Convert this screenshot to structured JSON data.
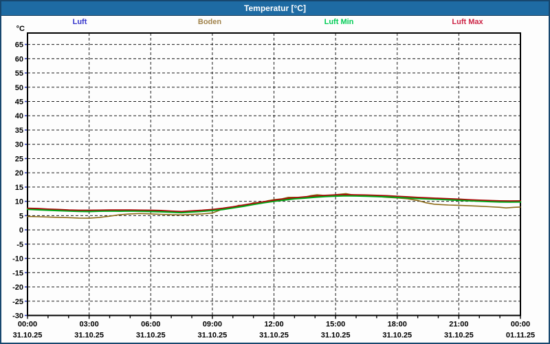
{
  "window": {
    "title": "Temperatur [°C]"
  },
  "legend": {
    "items": [
      {
        "label": "Luft",
        "color": "#3333cc"
      },
      {
        "label": "Boden",
        "color": "#a0824a"
      },
      {
        "label": "Luft Min",
        "color": "#00cc55"
      },
      {
        "label": "Luft Max",
        "color": "#cc2244"
      }
    ]
  },
  "chart_data": {
    "type": "line",
    "title": "Temperatur [°C]",
    "ylabel": "°C",
    "ylim": [
      -30,
      69
    ],
    "grid": "dashed",
    "legend_position": "top",
    "y_ticks": [
      65,
      60,
      55,
      50,
      45,
      40,
      35,
      30,
      25,
      20,
      15,
      10,
      5,
      0,
      -5,
      -10,
      -15,
      -20,
      -25,
      -30
    ],
    "x_ticks": [
      {
        "hour": 0,
        "time": "00:00",
        "date": "31.10.25"
      },
      {
        "hour": 3,
        "time": "03:00",
        "date": "31.10.25"
      },
      {
        "hour": 6,
        "time": "06:00",
        "date": "31.10.25"
      },
      {
        "hour": 9,
        "time": "09:00",
        "date": "31.10.25"
      },
      {
        "hour": 12,
        "time": "12:00",
        "date": "31.10.25"
      },
      {
        "hour": 15,
        "time": "15:00",
        "date": "31.10.25"
      },
      {
        "hour": 18,
        "time": "18:00",
        "date": "31.10.25"
      },
      {
        "hour": 21,
        "time": "21:00",
        "date": "31.10.25"
      },
      {
        "hour": 24,
        "time": "00:00",
        "date": "01.11.25"
      }
    ],
    "series": [
      {
        "name": "Luft",
        "color": "#3333cc",
        "width": 1.4,
        "x": [
          0,
          0.5,
          1,
          1.5,
          2,
          2.5,
          3,
          3.5,
          4,
          4.5,
          5,
          5.5,
          6,
          6.5,
          7,
          7.5,
          8,
          8.5,
          9,
          9.5,
          10,
          10.5,
          11,
          11.5,
          12,
          12.5,
          13,
          13.5,
          14,
          14.5,
          15,
          15.5,
          16,
          16.5,
          17,
          17.5,
          18,
          18.5,
          19,
          19.5,
          20,
          20.5,
          21,
          21.5,
          22,
          22.5,
          23,
          23.5,
          24
        ],
        "values": [
          7.45,
          7.35,
          7.15,
          7.05,
          6.85,
          6.75,
          6.75,
          6.8,
          6.85,
          6.85,
          6.85,
          6.8,
          6.75,
          6.65,
          6.45,
          6.3,
          6.55,
          6.75,
          7.05,
          7.45,
          7.95,
          8.55,
          9.15,
          9.75,
          10.25,
          10.75,
          11.15,
          11.45,
          11.75,
          11.95,
          12.15,
          12.2,
          12.15,
          12.1,
          11.95,
          11.85,
          11.65,
          11.45,
          11.25,
          11.1,
          10.95,
          10.8,
          10.65,
          10.45,
          10.3,
          10.15,
          10.05,
          10.0,
          10.05
        ]
      },
      {
        "name": "Boden",
        "color": "#8b6914",
        "width": 1.6,
        "x": [
          0,
          0.5,
          1,
          1.5,
          2,
          2.5,
          3,
          3.5,
          4,
          4.5,
          5,
          5.5,
          6,
          6.5,
          7,
          7.5,
          8,
          8.5,
          9,
          9.4,
          9.7,
          10,
          10.3,
          10.6,
          11,
          11.3,
          11.7,
          12,
          12.4,
          12.7,
          13,
          13.4,
          13.8,
          14.1,
          14.4,
          14.8,
          15.1,
          15.5,
          15.8,
          16,
          16.5,
          17,
          17.5,
          18,
          18.5,
          19,
          19.4,
          19.8,
          20,
          20.5,
          21,
          21.5,
          22,
          22.5,
          23,
          23.3,
          23.7,
          24
        ],
        "values": [
          4.7,
          4.6,
          4.5,
          4.4,
          4.3,
          4.15,
          4.1,
          4.35,
          4.8,
          5.3,
          5.6,
          5.75,
          5.6,
          5.45,
          5.3,
          5.25,
          5.4,
          5.6,
          5.9,
          7.0,
          7.8,
          7.9,
          8.6,
          8.4,
          9.5,
          9.4,
          10.2,
          10.6,
          10.9,
          11.4,
          11.4,
          11.3,
          12.0,
          12.3,
          12.1,
          12.0,
          12.4,
          12.7,
          12.3,
          12.2,
          12.0,
          11.7,
          11.4,
          11.2,
          10.9,
          10.3,
          9.5,
          9.0,
          8.9,
          8.7,
          8.6,
          8.45,
          8.3,
          8.1,
          7.9,
          7.7,
          7.9,
          8.0
        ]
      },
      {
        "name": "Luft Min",
        "color": "#00a818",
        "width": 2.6,
        "x": [
          0,
          0.5,
          1,
          1.5,
          2,
          2.5,
          3,
          3.5,
          4,
          4.5,
          5,
          5.5,
          6,
          6.5,
          7,
          7.5,
          8,
          8.5,
          9,
          9.5,
          10,
          10.5,
          11,
          11.5,
          12,
          12.5,
          13,
          13.5,
          14,
          14.5,
          15,
          15.5,
          16,
          16.5,
          17,
          17.5,
          18,
          18.5,
          19,
          19.5,
          20,
          20.5,
          21,
          21.5,
          22,
          22.5,
          23,
          23.5,
          24
        ],
        "values": [
          7.25,
          7.1,
          6.95,
          6.8,
          6.65,
          6.55,
          6.5,
          6.6,
          6.65,
          6.6,
          6.65,
          6.6,
          6.5,
          6.4,
          6.25,
          6.1,
          6.3,
          6.55,
          6.85,
          7.2,
          7.75,
          8.3,
          8.95,
          9.55,
          10.05,
          10.5,
          10.95,
          11.2,
          11.5,
          11.75,
          11.9,
          12.0,
          11.95,
          11.85,
          11.75,
          11.6,
          11.45,
          11.25,
          11.05,
          10.9,
          10.75,
          10.6,
          10.4,
          10.25,
          10.1,
          9.95,
          9.85,
          9.8,
          9.85
        ]
      },
      {
        "name": "Luft Max",
        "color": "#aa0a0a",
        "width": 1.7,
        "x": [
          0,
          0.5,
          1,
          1.5,
          2,
          2.5,
          3,
          3.5,
          4,
          4.5,
          5,
          5.5,
          6,
          6.5,
          7,
          7.5,
          8,
          8.5,
          9,
          9.5,
          10,
          10.5,
          11,
          11.5,
          12,
          12.5,
          13,
          13.5,
          14,
          14.5,
          15,
          15.5,
          16,
          16.5,
          17,
          17.5,
          18,
          18.5,
          19,
          19.5,
          20,
          20.5,
          21,
          21.5,
          22,
          22.5,
          23,
          23.5,
          24
        ],
        "values": [
          7.6,
          7.5,
          7.3,
          7.2,
          7.0,
          6.9,
          6.9,
          6.95,
          7.0,
          7.0,
          7.0,
          6.95,
          6.9,
          6.8,
          6.6,
          6.45,
          6.7,
          6.9,
          7.2,
          7.6,
          8.1,
          8.7,
          9.3,
          9.9,
          10.4,
          10.9,
          11.3,
          11.6,
          11.9,
          12.1,
          12.3,
          12.35,
          12.3,
          12.25,
          12.1,
          12.0,
          11.8,
          11.6,
          11.4,
          11.25,
          11.1,
          10.95,
          10.8,
          10.6,
          10.45,
          10.3,
          10.2,
          10.15,
          10.2
        ]
      }
    ]
  }
}
